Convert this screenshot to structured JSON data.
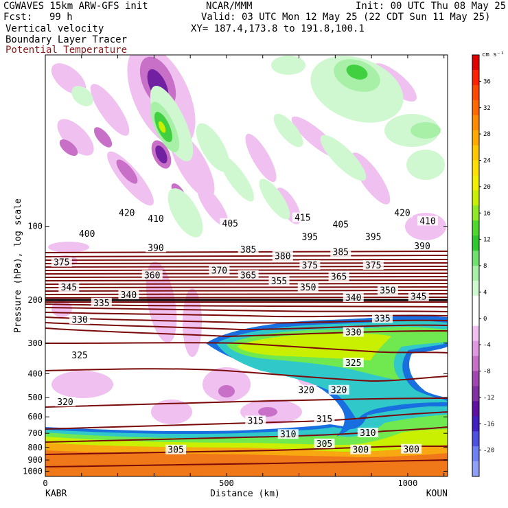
{
  "header": {
    "model": "CGWAVES 15km ARW-GFS init",
    "org": "NCAR/MMM",
    "init": "Init: 00 UTC Thu 08 May 25",
    "fcst_label": "Fcst:",
    "fcst_value": "99 h",
    "valid": "Valid: 03 UTC Mon 12 May 25 (22 CDT Sun 11 May 25)",
    "field1": "Vertical velocity",
    "field2": "Boundary Layer Tracer",
    "field3": "Potential Temperature",
    "xy": "XY= 187.4,173.8 to 191.8,100.1"
  },
  "colors": {
    "theta": "#7a0a0a",
    "tracer": [
      "#f07818",
      "#f8a810",
      "#c8f000",
      "#70e850",
      "#30c8c8",
      "#1870e0"
    ],
    "positive": [
      "#d0f8d0",
      "#a8f0a8",
      "#70e070",
      "#40d040",
      "#c8f000"
    ],
    "negative": [
      "#f0c0f0",
      "#e098e0",
      "#c870c8",
      "#a048b0",
      "#7020a0"
    ]
  },
  "chart_data": {
    "type": "heatmap",
    "xlabel": "Distance (km)",
    "ylabel": "Pressure (hPa), log scale",
    "x_ticks": [
      "0",
      "500",
      "1000"
    ],
    "x_end_labels": [
      "KABR",
      "KOUN"
    ],
    "xlim": [
      0,
      1110
    ],
    "y_ticks": [
      "100",
      "200",
      "300",
      "400",
      "500",
      "600",
      "700",
      "800",
      "900",
      "1000"
    ],
    "ylim": [
      1050,
      20
    ],
    "yscale": "log",
    "colorbar": {
      "unit": "cm s⁻¹",
      "ticks": [
        "36",
        "32",
        "28",
        "24",
        "20",
        "16",
        "12",
        "8",
        "4",
        "0",
        "-4",
        "-8",
        "-12",
        "-16",
        "-20"
      ],
      "colors": [
        "#e00000",
        "#ff2000",
        "#ff4800",
        "#ff6a00",
        "#ff8c00",
        "#ffaa00",
        "#ffc800",
        "#ffe000",
        "#f0f000",
        "#c8f000",
        "#90e828",
        "#50d830",
        "#30c830",
        "#70e070",
        "#a8f0a8",
        "#d0f8d0",
        "#ffffff",
        "#ffffff",
        "#f0c0f0",
        "#e098e0",
        "#c870c8",
        "#a048b0",
        "#8030a0",
        "#6010a0",
        "#4020c0",
        "#5050e0",
        "#7080f0",
        "#90a0f8"
      ]
    },
    "theta_labels": [
      {
        "text": "420",
        "x": 225,
        "p": 88
      },
      {
        "text": "410",
        "x": 305,
        "p": 93
      },
      {
        "text": "400",
        "x": 115,
        "p": 107
      },
      {
        "text": "390",
        "x": 305,
        "p": 122
      },
      {
        "text": "405",
        "x": 510,
        "p": 97
      },
      {
        "text": "415",
        "x": 710,
        "p": 92
      },
      {
        "text": "405",
        "x": 815,
        "p": 98
      },
      {
        "text": "420",
        "x": 985,
        "p": 88
      },
      {
        "text": "410",
        "x": 1055,
        "p": 95
      },
      {
        "text": "395",
        "x": 730,
        "p": 110
      },
      {
        "text": "395",
        "x": 905,
        "p": 110
      },
      {
        "text": "390",
        "x": 1040,
        "p": 120
      },
      {
        "text": "385",
        "x": 560,
        "p": 124
      },
      {
        "text": "380",
        "x": 655,
        "p": 132
      },
      {
        "text": "385",
        "x": 815,
        "p": 127
      },
      {
        "text": "375",
        "x": 45,
        "p": 140
      },
      {
        "text": "375",
        "x": 730,
        "p": 144
      },
      {
        "text": "375",
        "x": 905,
        "p": 144
      },
      {
        "text": "370",
        "x": 480,
        "p": 151
      },
      {
        "text": "365",
        "x": 560,
        "p": 158
      },
      {
        "text": "365",
        "x": 810,
        "p": 160
      },
      {
        "text": "360",
        "x": 295,
        "p": 158
      },
      {
        "text": "355",
        "x": 645,
        "p": 167
      },
      {
        "text": "350",
        "x": 725,
        "p": 177
      },
      {
        "text": "345",
        "x": 65,
        "p": 177
      },
      {
        "text": "340",
        "x": 230,
        "p": 190
      },
      {
        "text": "335",
        "x": 155,
        "p": 205
      },
      {
        "text": "340",
        "x": 850,
        "p": 195
      },
      {
        "text": "350",
        "x": 945,
        "p": 182
      },
      {
        "text": "345",
        "x": 1030,
        "p": 193
      },
      {
        "text": "335",
        "x": 930,
        "p": 237
      },
      {
        "text": "330",
        "x": 95,
        "p": 240
      },
      {
        "text": "330",
        "x": 850,
        "p": 270
      },
      {
        "text": "325",
        "x": 95,
        "p": 335
      },
      {
        "text": "325",
        "x": 850,
        "p": 360
      },
      {
        "text": "320",
        "x": 55,
        "p": 520
      },
      {
        "text": "320",
        "x": 720,
        "p": 465
      },
      {
        "text": "320",
        "x": 810,
        "p": 465
      },
      {
        "text": "315",
        "x": 580,
        "p": 620
      },
      {
        "text": "315",
        "x": 770,
        "p": 610
      },
      {
        "text": "310",
        "x": 670,
        "p": 705
      },
      {
        "text": "310",
        "x": 890,
        "p": 695
      },
      {
        "text": "305",
        "x": 360,
        "p": 815
      },
      {
        "text": "305",
        "x": 770,
        "p": 770
      },
      {
        "text": "300",
        "x": 870,
        "p": 815
      },
      {
        "text": "300",
        "x": 1010,
        "p": 810
      }
    ]
  }
}
